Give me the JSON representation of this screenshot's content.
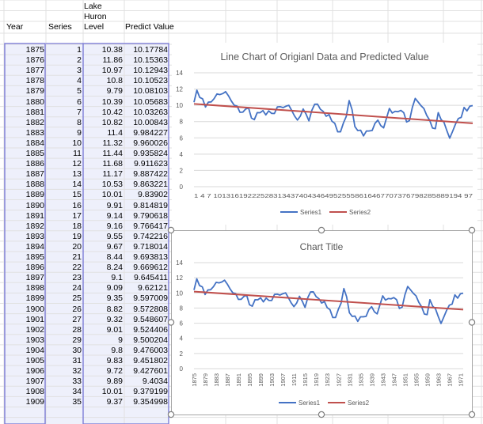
{
  "header": {
    "year": "Year",
    "series": "Series",
    "lake_line1": "Lake",
    "lake_line2": "Huron",
    "lake_line3": "Level",
    "predict": "Predict Value"
  },
  "rows": [
    {
      "year": "1875",
      "series": "1",
      "level": "10.38",
      "predict": "10.17784"
    },
    {
      "year": "1876",
      "series": "2",
      "level": "11.86",
      "predict": "10.15363"
    },
    {
      "year": "1877",
      "series": "3",
      "level": "10.97",
      "predict": "10.12943"
    },
    {
      "year": "1878",
      "series": "4",
      "level": "10.8",
      "predict": "10.10523"
    },
    {
      "year": "1879",
      "series": "5",
      "level": "9.79",
      "predict": "10.08103"
    },
    {
      "year": "1880",
      "series": "6",
      "level": "10.39",
      "predict": "10.05683"
    },
    {
      "year": "1881",
      "series": "7",
      "level": "10.42",
      "predict": "10.03263"
    },
    {
      "year": "1882",
      "series": "8",
      "level": "10.82",
      "predict": "10.00843"
    },
    {
      "year": "1883",
      "series": "9",
      "level": "11.4",
      "predict": "9.984227"
    },
    {
      "year": "1884",
      "series": "10",
      "level": "11.32",
      "predict": "9.960026"
    },
    {
      "year": "1885",
      "series": "11",
      "level": "11.44",
      "predict": "9.935824"
    },
    {
      "year": "1886",
      "series": "12",
      "level": "11.68",
      "predict": "9.911623"
    },
    {
      "year": "1887",
      "series": "13",
      "level": "11.17",
      "predict": "9.887422"
    },
    {
      "year": "1888",
      "series": "14",
      "level": "10.53",
      "predict": "9.863221"
    },
    {
      "year": "1889",
      "series": "15",
      "level": "10.01",
      "predict": "9.83902"
    },
    {
      "year": "1890",
      "series": "16",
      "level": "9.91",
      "predict": "9.814819"
    },
    {
      "year": "1891",
      "series": "17",
      "level": "9.14",
      "predict": "9.790618"
    },
    {
      "year": "1892",
      "series": "18",
      "level": "9.16",
      "predict": "9.766417"
    },
    {
      "year": "1893",
      "series": "19",
      "level": "9.55",
      "predict": "9.742216"
    },
    {
      "year": "1894",
      "series": "20",
      "level": "9.67",
      "predict": "9.718014"
    },
    {
      "year": "1895",
      "series": "21",
      "level": "8.44",
      "predict": "9.693813"
    },
    {
      "year": "1896",
      "series": "22",
      "level": "8.24",
      "predict": "9.669612"
    },
    {
      "year": "1897",
      "series": "23",
      "level": "9.1",
      "predict": "9.645411"
    },
    {
      "year": "1898",
      "series": "24",
      "level": "9.09",
      "predict": "9.62121"
    },
    {
      "year": "1899",
      "series": "25",
      "level": "9.35",
      "predict": "9.597009"
    },
    {
      "year": "1900",
      "series": "26",
      "level": "8.82",
      "predict": "9.572808"
    },
    {
      "year": "1901",
      "series": "27",
      "level": "9.32",
      "predict": "9.548607"
    },
    {
      "year": "1902",
      "series": "28",
      "level": "9.01",
      "predict": "9.524406"
    },
    {
      "year": "1903",
      "series": "29",
      "level": "9",
      "predict": "9.500204"
    },
    {
      "year": "1904",
      "series": "30",
      "level": "9.8",
      "predict": "9.476003"
    },
    {
      "year": "1905",
      "series": "31",
      "level": "9.83",
      "predict": "9.451802"
    },
    {
      "year": "1906",
      "series": "32",
      "level": "9.72",
      "predict": "9.427601"
    },
    {
      "year": "1907",
      "series": "33",
      "level": "9.89",
      "predict": "9.4034"
    },
    {
      "year": "1908",
      "series": "34",
      "level": "10.01",
      "predict": "9.379199"
    },
    {
      "year": "1909",
      "series": "35",
      "level": "9.37",
      "predict": "9.354998"
    }
  ],
  "chart1": {
    "title": "Line Chart of Origianl Data and Predicted Value",
    "x_tick_text": "1 4 7 1013161922252831343740434649525558616467707376798285889194 97",
    "legend": [
      "Series1",
      "Series2"
    ]
  },
  "chart2": {
    "title": "Chart Title",
    "x_ticks": [
      "1875",
      "1879",
      "1883",
      "1887",
      "1891",
      "1895",
      "1899",
      "1903",
      "1907",
      "1911",
      "1915",
      "1919",
      "1923",
      "1927",
      "1931",
      "1935",
      "1939",
      "1943",
      "1947",
      "1951",
      "1955",
      "1959",
      "1963",
      "1967",
      "1971"
    ],
    "legend": [
      "Series1",
      "Series2"
    ]
  },
  "chart_data": [
    {
      "type": "line",
      "title": "Line Chart of Origianl Data and Predicted Value",
      "xlabel": "",
      "ylabel": "",
      "ylim": [
        0,
        14
      ],
      "yticks": [
        0,
        2,
        4,
        6,
        8,
        10,
        12,
        14
      ],
      "grid": true,
      "legend": "bottom",
      "x_start": 1,
      "series": [
        {
          "name": "Series1",
          "color": "#4472C4",
          "values": [
            10.38,
            11.86,
            10.97,
            10.8,
            9.79,
            10.39,
            10.42,
            10.82,
            11.4,
            11.32,
            11.44,
            11.68,
            11.17,
            10.53,
            10.01,
            9.91,
            9.14,
            9.16,
            9.55,
            9.67,
            8.44,
            8.24,
            9.1,
            9.09,
            9.35,
            8.82,
            9.32,
            9.01,
            9,
            9.8,
            9.83,
            9.72,
            9.89,
            10.01,
            9.37,
            8.69,
            8.19,
            8.67,
            9.55,
            8.92,
            8.09,
            9.37,
            10.13,
            10.14,
            9.51,
            9.24,
            8.66,
            8.86,
            8.05,
            7.79,
            6.75,
            6.75,
            7.82,
            8.64,
            10.58,
            9.48,
            7.38,
            6.9,
            6.94,
            6.24,
            6.84,
            6.85,
            6.9,
            7.79,
            8.18,
            7.51,
            7.23,
            8.42,
            9.61,
            9.05,
            9.26,
            9.22,
            9.38,
            9.1,
            7.95,
            8.12,
            9.75,
            10.85,
            10.41,
            9.96,
            9.61,
            8.76,
            8.18,
            7.21,
            7.13,
            9.1,
            8.25,
            7.91,
            6.89,
            5.96,
            6.8,
            7.68,
            8.38,
            8.52,
            9.74,
            9.31,
            9.89,
            9.96
          ]
        },
        {
          "name": "Series2",
          "color": "#C0504D",
          "values": [
            10.178,
            9.834
          ]
        }
      ]
    },
    {
      "type": "line",
      "title": "Chart Title",
      "xlabel": "",
      "ylabel": "",
      "ylim": [
        0,
        14
      ],
      "yticks": [
        0,
        2,
        4,
        6,
        8,
        10,
        12,
        14
      ],
      "grid": true,
      "legend": "bottom",
      "categories_first_year": 1875,
      "series": [
        {
          "name": "Series1",
          "color": "#4472C4",
          "values": "same as chart 1"
        },
        {
          "name": "Series2",
          "color": "#C0504D",
          "values": "same as chart 1"
        }
      ]
    }
  ],
  "colors": {
    "selection_fill": "#eef0fb",
    "selection_border": "#7d7dd8",
    "grid_line": "#e1e1e1",
    "series1": "#4472C4",
    "series2": "#C0504D"
  }
}
